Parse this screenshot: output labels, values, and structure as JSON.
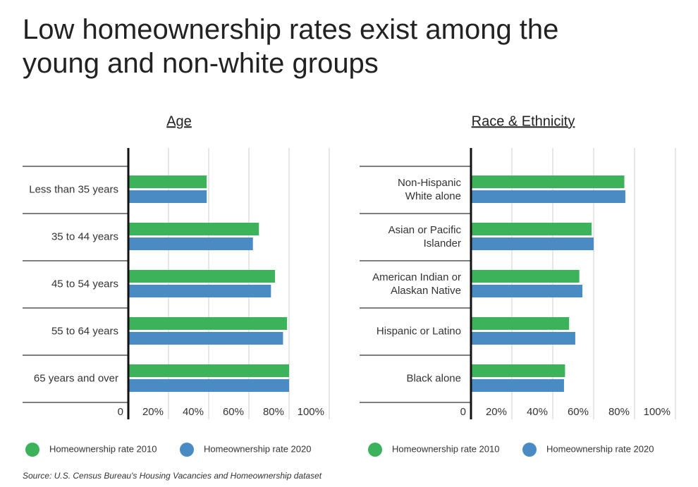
{
  "title": "Low homeownership rates exist among the young and non-white groups",
  "source": "Source:  U.S. Census Bureau's Housing Vacancies and Homeownership dataset",
  "chart_data": [
    {
      "type": "bar",
      "orientation": "horizontal",
      "title": "Age",
      "categories": [
        "Less than 35 years",
        "35 to 44 years",
        "45 to 54 years",
        "55 to 64 years",
        "65 years and over"
      ],
      "series": [
        {
          "name": "Homeownership rate 2010",
          "color": "#3cb35b",
          "values": [
            39,
            65,
            73,
            79,
            80
          ]
        },
        {
          "name": "Homeownership rate 2020",
          "color": "#4a8bc3",
          "values": [
            39,
            62,
            71,
            77,
            80
          ]
        }
      ],
      "xlim": [
        0,
        100
      ],
      "xticks": [
        0,
        {
          "value": 20,
          "label": "20%"
        },
        {
          "value": 40,
          "label": "40%"
        },
        {
          "value": 60,
          "label": "60%"
        },
        {
          "value": 80,
          "label": "80%"
        },
        {
          "value": 100,
          "label": "100%"
        }
      ],
      "grid": true
    },
    {
      "type": "bar",
      "orientation": "horizontal",
      "title": "Race & Ethnicity",
      "categories": [
        "Non-Hispanic\nWhite alone",
        "Asian or Pacific\nIslander",
        "American Indian or\nAlaskan Native",
        "Hispanic or Latino",
        "Black alone"
      ],
      "series": [
        {
          "name": "Homeownership rate 2010",
          "color": "#3cb35b",
          "values": [
            75,
            59,
            53,
            48,
            46
          ]
        },
        {
          "name": "Homeownership rate 2020",
          "color": "#4a8bc3",
          "values": [
            75.5,
            60,
            54.5,
            51,
            45.5
          ]
        }
      ],
      "xlim": [
        0,
        100
      ],
      "xticks": [
        0,
        {
          "value": 20,
          "label": "20%"
        },
        {
          "value": 40,
          "label": "40%"
        },
        {
          "value": 60,
          "label": "60%"
        },
        {
          "value": 80,
          "label": "80%"
        },
        {
          "value": 100,
          "label": "100%"
        }
      ],
      "grid": true
    }
  ]
}
